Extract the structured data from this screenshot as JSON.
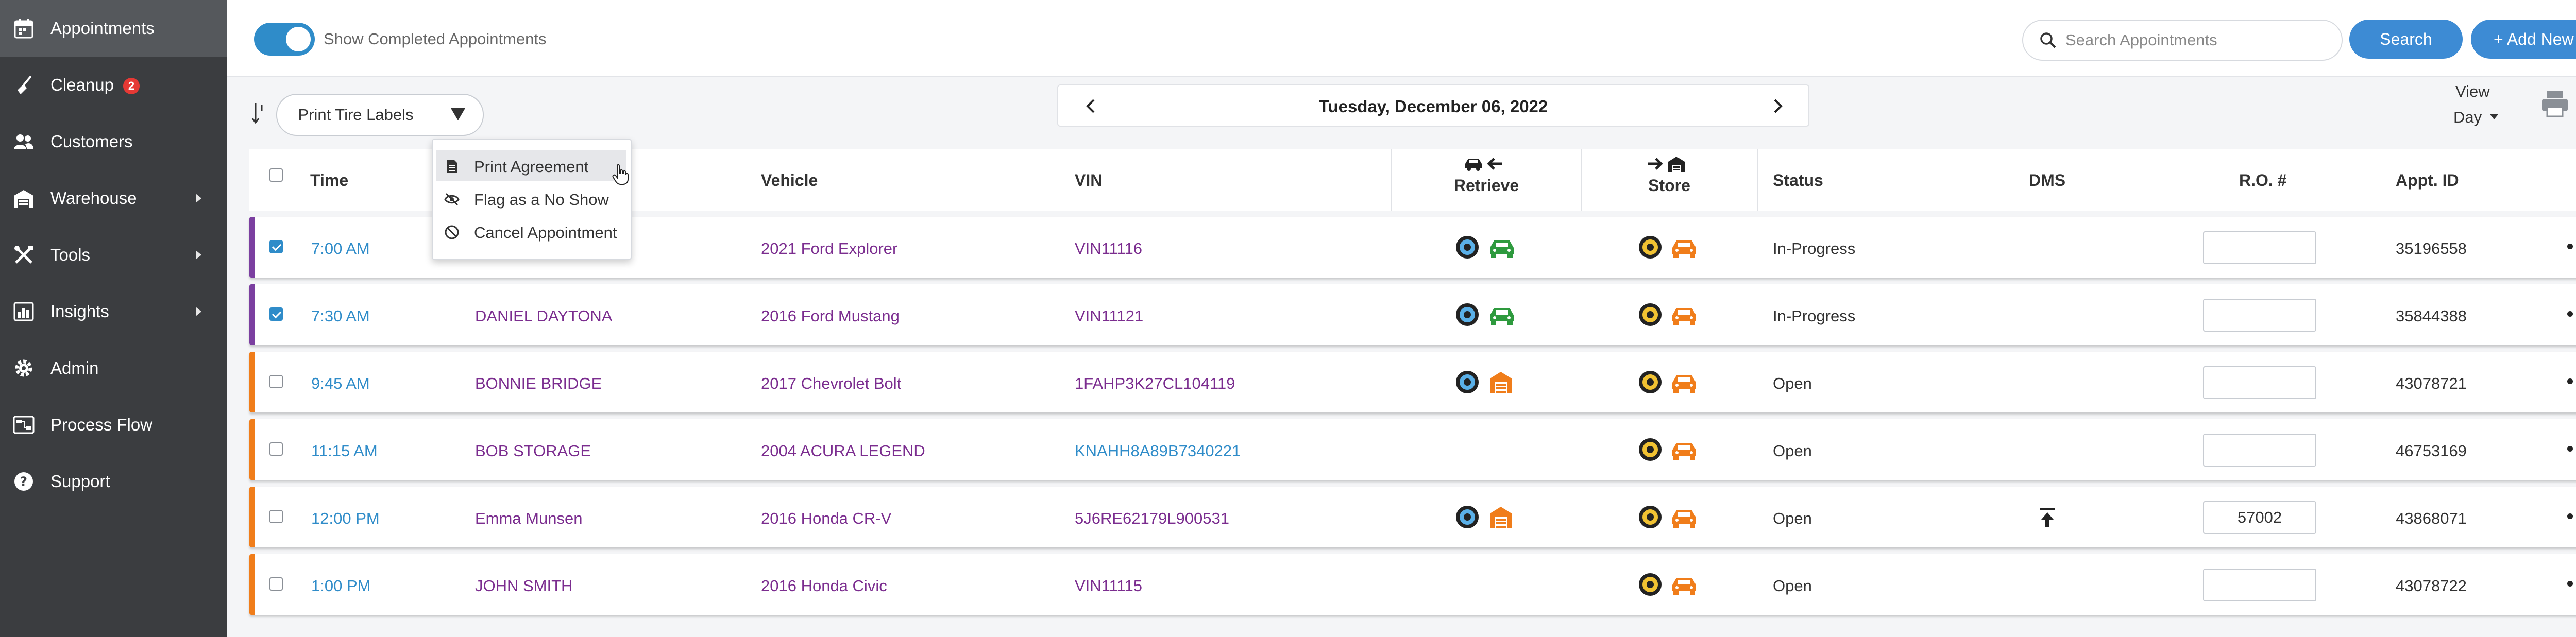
{
  "sidebar": {
    "items": [
      {
        "label": "Appointments",
        "icon": "calendar-icon"
      },
      {
        "label": "Cleanup",
        "icon": "broom-icon",
        "badge": "2"
      },
      {
        "label": "Customers",
        "icon": "users-icon"
      },
      {
        "label": "Warehouse",
        "icon": "warehouse-icon"
      },
      {
        "label": "Tools",
        "icon": "tools-icon"
      },
      {
        "label": "Insights",
        "icon": "chart-icon"
      },
      {
        "label": "Admin",
        "icon": "gear-icon"
      },
      {
        "label": "Process Flow",
        "icon": "process-flow-icon"
      },
      {
        "label": "Support",
        "icon": "help-icon"
      }
    ]
  },
  "topbar": {
    "toggle_label": "Show Completed Appointments",
    "toggle_on": true,
    "search_placeholder": "Search Appointments",
    "search_button": "Search",
    "add_new_button": "+ Add New"
  },
  "controls": {
    "print_button": "Print Tire Labels",
    "date": "Tuesday, December 06, 2022",
    "view_label": "View",
    "view_value": "Day"
  },
  "menu": {
    "items": [
      {
        "label": "Print Agreement",
        "icon": "document-icon"
      },
      {
        "label": "Flag as a No Show",
        "icon": "eye-slash-icon"
      },
      {
        "label": "Cancel Appointment",
        "icon": "ban-icon"
      }
    ]
  },
  "table": {
    "headers": {
      "time": "Time",
      "vehicle": "Vehicle",
      "vin": "VIN",
      "retrieve": "Retrieve",
      "store": "Store",
      "status": "Status",
      "dms": "DMS",
      "ro": "R.O. #",
      "appt_id": "Appt. ID"
    },
    "rows": [
      {
        "time": "7:00 AM",
        "customer": "",
        "vehicle": "2021 Ford Explorer",
        "vin": "VIN11116",
        "status": "In-Progress",
        "ro": "",
        "appt_id": "35196558"
      },
      {
        "time": "7:30 AM",
        "customer": "DANIEL DAYTONA",
        "vehicle": "2016 Ford Mustang",
        "vin": "VIN11121",
        "status": "In-Progress",
        "ro": "",
        "appt_id": "35844388"
      },
      {
        "time": "9:45 AM",
        "customer": "BONNIE BRIDGE",
        "vehicle": "2017 Chevrolet Bolt",
        "vin": "1FAHP3K27CL104119",
        "status": "Open",
        "ro": "",
        "appt_id": "43078721"
      },
      {
        "time": "11:15 AM",
        "customer": "BOB STORAGE",
        "vehicle": "2004 ACURA LEGEND",
        "vin": "KNAHH8A89B7340221",
        "status": "Open",
        "ro": "",
        "appt_id": "46753169"
      },
      {
        "time": "12:00 PM",
        "customer": "Emma Munsen",
        "vehicle": "2016 Honda CR-V",
        "vin": "5J6RE62179L900531",
        "status": "Open",
        "ro": "57002",
        "appt_id": "43868071"
      },
      {
        "time": "1:00 PM",
        "customer": "JOHN SMITH",
        "vehicle": "2016 Honda Civic",
        "vin": "VIN11115",
        "status": "Open",
        "ro": "",
        "appt_id": "43078722"
      }
    ]
  },
  "colors": {
    "sidebar_bg": "#3b3d40",
    "sidebar_active": "#55585c",
    "accent_blue": "#3d8bd4",
    "toggle_blue": "#2f8cc9",
    "row_bar_purple": "#7b3fa0",
    "row_bar_orange": "#f07d1a",
    "icon_green": "#2e9a3e",
    "icon_orange": "#f07d1a",
    "link_purple": "#7b2d8f",
    "badge_red": "#e53935"
  }
}
